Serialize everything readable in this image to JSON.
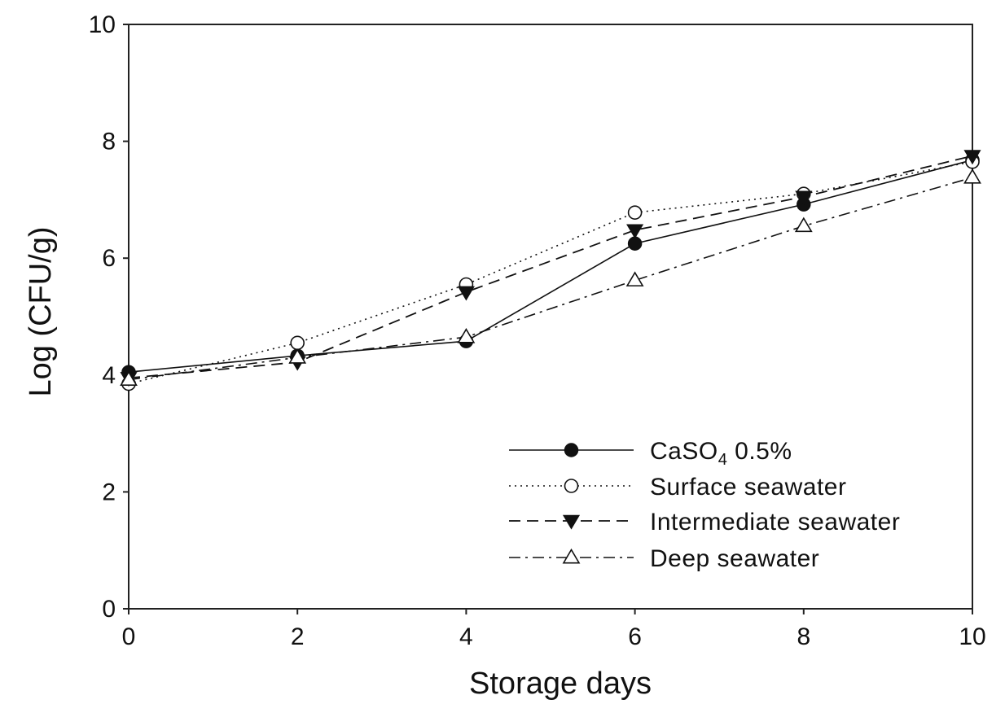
{
  "chart_data": {
    "type": "line",
    "title": "",
    "xlabel": "Storage days",
    "ylabel": "Log (CFU/g)",
    "xlim": [
      0,
      10
    ],
    "ylim": [
      0,
      10
    ],
    "xticks": [
      0,
      2,
      4,
      6,
      8,
      10
    ],
    "yticks": [
      0,
      2,
      4,
      6,
      8,
      10
    ],
    "grid": false,
    "legend_position": "bottom-right",
    "x": [
      0,
      2,
      4,
      6,
      8,
      10
    ],
    "series": [
      {
        "name": "CaSO4 0.5%",
        "name_main": "CaSO",
        "name_sub": "4",
        "name_tail": " 0.5%",
        "values": [
          4.05,
          4.33,
          4.58,
          6.25,
          6.92,
          7.68
        ],
        "marker": "filled-circle",
        "line": "solid",
        "color": "#111111"
      },
      {
        "name": "Surface seawater",
        "values": [
          3.85,
          4.55,
          5.55,
          6.78,
          7.1,
          7.65
        ],
        "marker": "open-circle",
        "line": "dotted",
        "color": "#111111"
      },
      {
        "name": "Intermediate seawater",
        "values": [
          3.95,
          4.22,
          5.42,
          6.48,
          7.05,
          7.75
        ],
        "marker": "filled-triangle-down",
        "line": "dashed",
        "color": "#111111"
      },
      {
        "name": "Deep seawater",
        "values": [
          3.92,
          4.3,
          4.65,
          5.62,
          6.55,
          7.38
        ],
        "marker": "open-triangle-up",
        "line": "dash-dot",
        "color": "#111111"
      }
    ]
  }
}
